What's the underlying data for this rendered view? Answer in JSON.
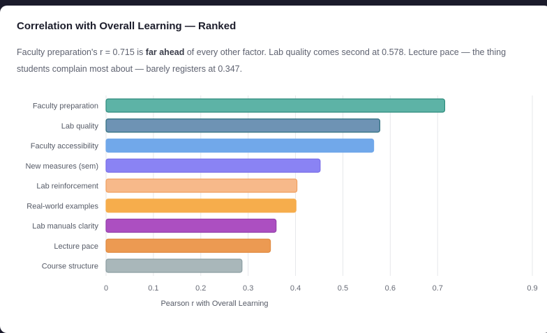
{
  "chart_data": {
    "type": "bar",
    "orientation": "horizontal",
    "title": "Correlation with Overall Learning — Ranked",
    "subtitle": {
      "before": "Faculty preparation's r = 0.715 is ",
      "bold": "far ahead",
      "after": " of every other factor. Lab quality comes second at 0.578. Lecture pace — the thing students complain most about — barely registers at 0.347."
    },
    "categories": [
      "Faculty preparation",
      "Lab quality",
      "Faculty accessibility",
      "New measures (sem)",
      "Lab reinforcement",
      "Real-world examples",
      "Lab manuals clarity",
      "Lecture pace",
      "Course structure"
    ],
    "values": [
      0.715,
      0.578,
      0.565,
      0.452,
      0.403,
      0.401,
      0.359,
      0.347,
      0.287
    ],
    "colors": [
      "#5db3a6",
      "#6e93b4",
      "#71a8ea",
      "#8a83f4",
      "#f7b98a",
      "#f6ad4c",
      "#ac4fc1",
      "#ec9a52",
      "#a9b7ba"
    ],
    "borders": [
      "#2e8b7c",
      "#2e6e7e",
      "#71a8ea",
      "#7a6fe8",
      "#f0a060",
      "#f6ad4c",
      "#9440aa",
      "#e08a40",
      "#8c9ea2"
    ],
    "xlabel": "Pearson r with Overall Learning",
    "ylabel": "",
    "xlim": [
      0,
      0.9
    ],
    "xticks": [
      "0",
      "0.1",
      "0.2",
      "0.3",
      "0.4",
      "0.5",
      "0.6",
      "0.7",
      "0.9"
    ],
    "grid": true
  }
}
